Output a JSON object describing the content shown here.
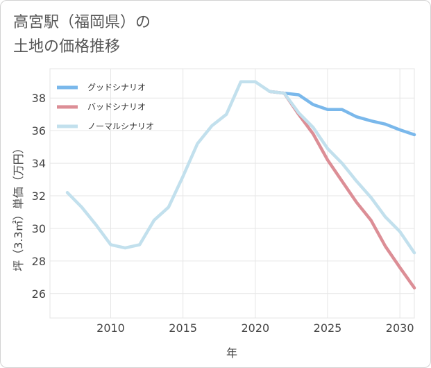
{
  "title": {
    "line1": "高宮駅（福岡県）の",
    "line2": "土地の価格推移"
  },
  "chart_data": {
    "type": "line",
    "title": "高宮駅（福岡県）の土地の価格推移",
    "xlabel": "年",
    "ylabel": "坪（3.3㎡）単価（万円）",
    "xlim": [
      2005.8,
      2031
    ],
    "ylim": [
      24.5,
      39.8
    ],
    "xticks": [
      2010,
      2015,
      2020,
      2025,
      2030
    ],
    "yticks": [
      26,
      28,
      30,
      32,
      34,
      36,
      38
    ],
    "grid": true,
    "legend_position": "top-left",
    "series": [
      {
        "name": "グッドシナリオ",
        "color": "#7ab8eb",
        "x": [
          2021,
          2022,
          2023,
          2024,
          2025,
          2026,
          2027,
          2028,
          2029,
          2030,
          2031
        ],
        "values": [
          38.4,
          38.3,
          38.2,
          37.6,
          37.3,
          37.3,
          36.85,
          36.6,
          36.4,
          36.05,
          35.75
        ]
      },
      {
        "name": "バッドシナリオ",
        "color": "#dc8e96",
        "x": [
          2021,
          2022,
          2023,
          2024,
          2025,
          2026,
          2027,
          2028,
          2029,
          2030,
          2031
        ],
        "values": [
          38.4,
          38.3,
          37.0,
          35.8,
          34.2,
          32.9,
          31.6,
          30.5,
          28.9,
          27.6,
          26.35
        ]
      },
      {
        "name": "ノーマルシナリオ",
        "color": "#c2e0ed",
        "x": [
          2007,
          2008,
          2009,
          2010,
          2011,
          2012,
          2013,
          2014,
          2015,
          2016,
          2017,
          2018,
          2019,
          2020,
          2021,
          2022,
          2023,
          2024,
          2025,
          2026,
          2027,
          2028,
          2029,
          2030,
          2031
        ],
        "values": [
          32.2,
          31.3,
          30.2,
          29.0,
          28.8,
          29.0,
          30.5,
          31.3,
          33.2,
          35.2,
          36.3,
          37.0,
          39.0,
          39.0,
          38.4,
          38.3,
          37.1,
          36.2,
          34.9,
          34.0,
          32.9,
          31.9,
          30.7,
          29.8,
          28.5
        ]
      }
    ]
  }
}
